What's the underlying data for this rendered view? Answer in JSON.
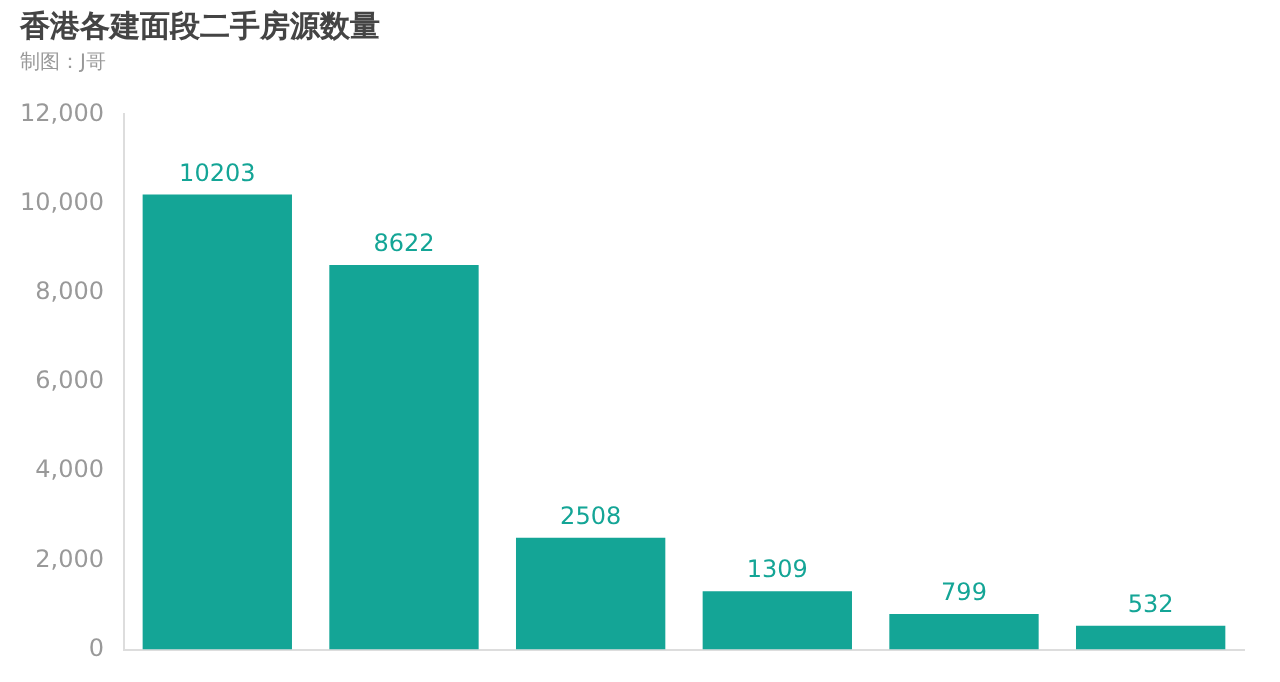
{
  "chart_data": {
    "type": "bar",
    "title": "香港各建面段二手房源数量",
    "subtitle": "制图：J哥",
    "categories": [
      null,
      null,
      null,
      null,
      null,
      null
    ],
    "values": [
      10203,
      8622,
      2508,
      1309,
      799,
      532
    ],
    "color": "#14a596",
    "ylim": [
      0,
      12000
    ],
    "yticks": [
      {
        "value": 0,
        "label": "0"
      },
      {
        "value": 2000,
        "label": "2,000"
      },
      {
        "value": 4000,
        "label": "4,000"
      },
      {
        "value": 6000,
        "label": "6,000"
      },
      {
        "value": 8000,
        "label": "8,000"
      },
      {
        "value": 10000,
        "label": "10,000"
      },
      {
        "value": 12000,
        "label": "12,000"
      }
    ],
    "grid": false,
    "data_labels": true,
    "legend": false
  }
}
